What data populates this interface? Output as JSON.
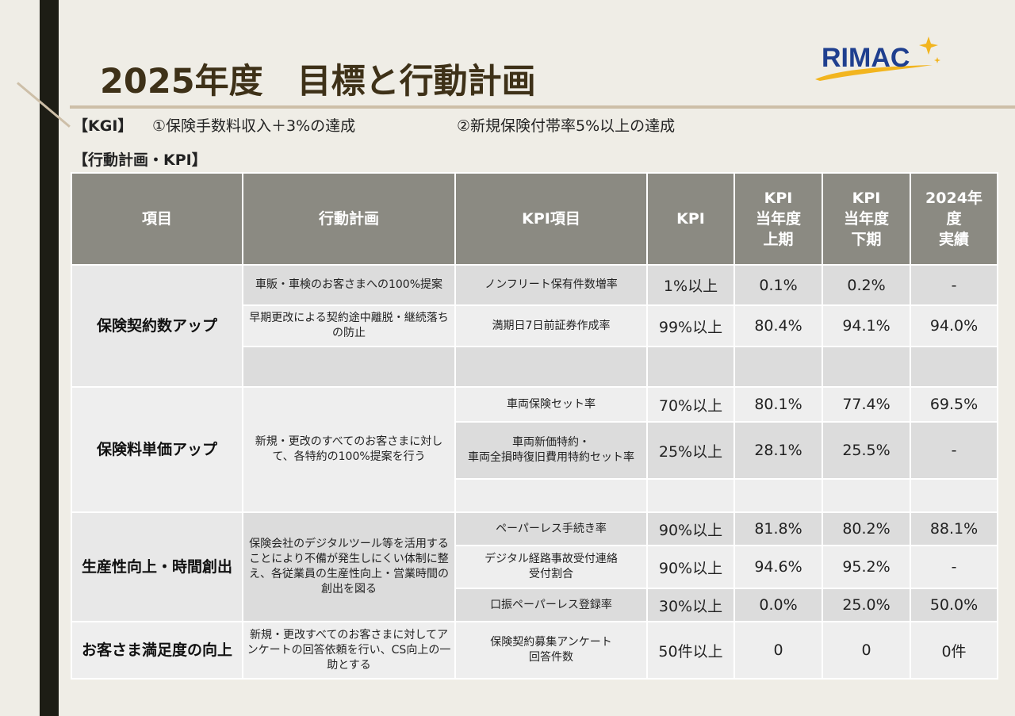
{
  "title": "2025年度　目標と行動計画",
  "logo": {
    "text": "RIMAC"
  },
  "kgi": {
    "label": "【KGI】",
    "item1": "①保険手数料収入＋3%の達成",
    "item2": "②新規保険付帯率5%以上の達成"
  },
  "plan_heading": "【行動計画・KPI】",
  "table": {
    "headers": {
      "item": "項目",
      "plan": "行動計画",
      "kpi_item": "KPI項目",
      "kpi": "KPI",
      "h1": "KPI\n当年度\n上期",
      "h2": "KPI\n当年度\n下期",
      "prev": "2024年\n度\n実績"
    },
    "groups": [
      {
        "category": "保険契約数アップ",
        "rows": [
          {
            "plan": "車販・車検のお客さまへの100%提案",
            "kpi_item": "ノンフリート保有件数増率",
            "kpi": "1%以上",
            "h1": "0.1%",
            "h2": "0.2%",
            "prev": "-"
          },
          {
            "plan": "早期更改による契約途中離脱・継続落ちの防止",
            "kpi_item": "満期日7日前証券作成率",
            "kpi": "99%以上",
            "h1": "80.4%",
            "h2": "94.1%",
            "prev": "94.0%"
          },
          {
            "plan": "",
            "kpi_item": "",
            "kpi": "",
            "h1": "",
            "h2": "",
            "prev": ""
          }
        ]
      },
      {
        "category": "保険料単価アップ",
        "plan": "新規・更改のすべてのお客さまに対して、各特約の100%提案を行う",
        "rows": [
          {
            "kpi_item": "車両保険セット率",
            "kpi": "70%以上",
            "h1": "80.1%",
            "h2": "77.4%",
            "prev": "69.5%"
          },
          {
            "kpi_item": "車両新価特約・\n車両全損時復旧費用特約セット率",
            "kpi": "25%以上",
            "h1": "28.1%",
            "h2": "25.5%",
            "prev": "-"
          },
          {
            "kpi_item": "",
            "kpi": "",
            "h1": "",
            "h2": "",
            "prev": ""
          }
        ]
      },
      {
        "category": "生産性向上・時間創出",
        "plan": "保険会社のデジタルツール等を活用することにより不備が発生しにくい体制に整え、各従業員の生産性向上・営業時間の創出を図る",
        "rows": [
          {
            "kpi_item": "ペーパーレス手続き率",
            "kpi": "90%以上",
            "h1": "81.8%",
            "h2": "80.2%",
            "prev": "88.1%"
          },
          {
            "kpi_item": "デジタル経路事故受付連絡\n受付割合",
            "kpi": "90%以上",
            "h1": "94.6%",
            "h2": "95.2%",
            "prev": "-"
          },
          {
            "kpi_item": "口振ペーパーレス登録率",
            "kpi": "30%以上",
            "h1": "0.0%",
            "h2": "25.0%",
            "prev": "50.0%"
          }
        ]
      },
      {
        "category": "お客さま満足度の向上",
        "plan": "新規・更改すべてのお客さまに対してアンケートの回答依頼を行い、CS向上の一助とする",
        "rows": [
          {
            "kpi_item": "保険契約募集アンケート\n回答件数",
            "kpi": "50件以上",
            "h1": "0",
            "h2": "0",
            "prev": "0件"
          }
        ]
      }
    ]
  }
}
